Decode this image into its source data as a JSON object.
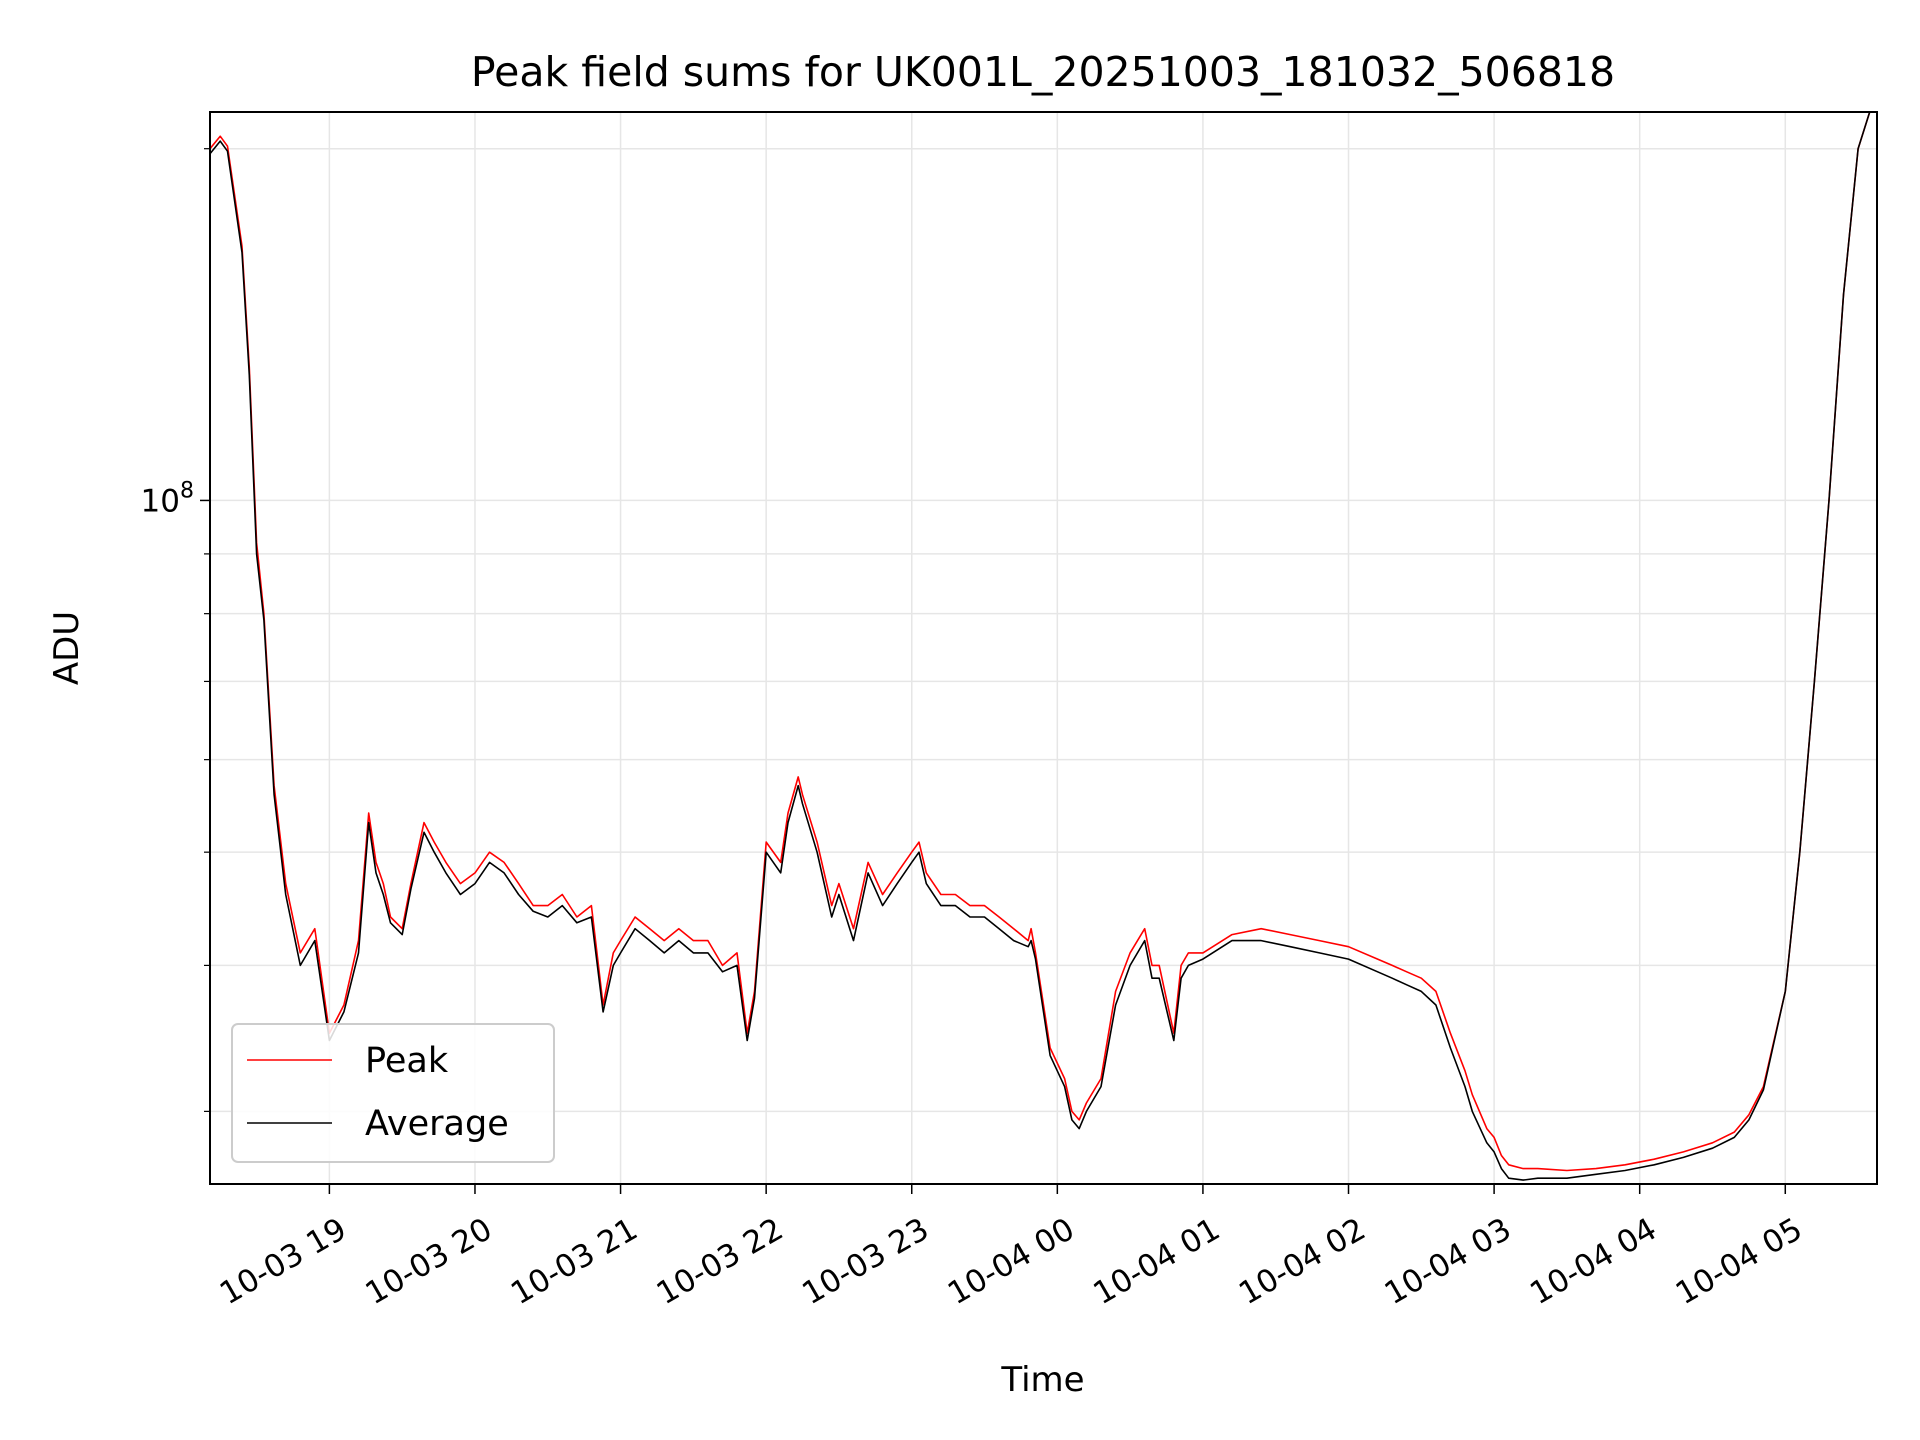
{
  "chart_data": {
    "type": "line",
    "title": "Peak field sums for UK001L_20251003_181032_506818",
    "xlabel": "Time",
    "ylabel": "ADU",
    "yscale": "log",
    "grid": true,
    "legend_position": "lower-left",
    "x_unit": "hours since 10-03 18:00",
    "xlim": [
      0.18,
      11.63
    ],
    "ylim": [
      26000000,
      215000000
    ],
    "x_ticks": [
      1,
      2,
      3,
      4,
      5,
      6,
      7,
      8,
      9,
      10,
      11
    ],
    "x_tick_labels": [
      "10-03 19",
      "10-03 20",
      "10-03 21",
      "10-03 22",
      "10-03 23",
      "10-04 00",
      "10-04 01",
      "10-04 02",
      "10-04 03",
      "10-04 04",
      "10-04 05"
    ],
    "y_major_ticks": [
      100000000
    ],
    "y_major_tick_labels": [
      "10"
    ],
    "y_major_tick_superscripts": [
      "8"
    ],
    "y_minor_ticks": [
      30000000,
      40000000,
      50000000,
      60000000,
      70000000,
      80000000,
      90000000,
      200000000
    ],
    "series": [
      {
        "name": "Peak",
        "color": "#ff0000",
        "x": [
          0.18,
          0.25,
          0.3,
          0.4,
          0.45,
          0.5,
          0.55,
          0.62,
          0.7,
          0.8,
          0.9,
          1.0,
          1.1,
          1.2,
          1.27,
          1.32,
          1.37,
          1.42,
          1.5,
          1.56,
          1.65,
          1.72,
          1.8,
          1.9,
          2.0,
          2.1,
          2.2,
          2.3,
          2.4,
          2.5,
          2.6,
          2.7,
          2.8,
          2.88,
          2.95,
          3.0,
          3.1,
          3.2,
          3.3,
          3.4,
          3.5,
          3.6,
          3.7,
          3.8,
          3.87,
          3.92,
          4.0,
          4.1,
          4.15,
          4.22,
          4.25,
          4.35,
          4.45,
          4.5,
          4.6,
          4.7,
          4.8,
          4.9,
          5.0,
          5.05,
          5.1,
          5.2,
          5.3,
          5.4,
          5.5,
          5.6,
          5.7,
          5.8,
          5.82,
          5.85,
          5.95,
          6.05,
          6.1,
          6.15,
          6.2,
          6.3,
          6.4,
          6.5,
          6.6,
          6.65,
          6.7,
          6.8,
          6.85,
          6.9,
          7.0,
          7.2,
          7.4,
          7.6,
          7.8,
          8.0,
          8.2,
          8.3,
          8.4,
          8.5,
          8.6,
          8.7,
          8.8,
          8.85,
          8.95,
          9.0,
          9.05,
          9.1,
          9.2,
          9.3,
          9.5,
          9.7,
          9.9,
          10.1,
          10.3,
          10.5,
          10.65,
          10.75,
          10.85,
          11.0,
          11.1,
          11.2,
          11.3,
          11.4,
          11.5,
          11.58,
          11.63
        ],
        "y": [
          200000000,
          205000000,
          201000000,
          165000000,
          130000000,
          92000000,
          80000000,
          57000000,
          47000000,
          41000000,
          43000000,
          35000000,
          37000000,
          42000000,
          54000000,
          49000000,
          47000000,
          44000000,
          43000000,
          47000000,
          53000000,
          51000000,
          49000000,
          47000000,
          48000000,
          50000000,
          49000000,
          47000000,
          45000000,
          45000000,
          46000000,
          44000000,
          45000000,
          37000000,
          41000000,
          42000000,
          44000000,
          43000000,
          42000000,
          43000000,
          42000000,
          42000000,
          40000000,
          41000000,
          35000000,
          38000000,
          51000000,
          49000000,
          54000000,
          58000000,
          56000000,
          51000000,
          45000000,
          47000000,
          43000000,
          49000000,
          46000000,
          48000000,
          50000000,
          51000000,
          48000000,
          46000000,
          46000000,
          45000000,
          45000000,
          44000000,
          43000000,
          42000000,
          43000000,
          41000000,
          34000000,
          32000000,
          30000000,
          29500000,
          30500000,
          32000000,
          38000000,
          41000000,
          43000000,
          40000000,
          40000000,
          35000000,
          40000000,
          41000000,
          41000000,
          42500000,
          43000000,
          42500000,
          42000000,
          41500000,
          40500000,
          40000000,
          39500000,
          39000000,
          38000000,
          35000000,
          32500000,
          31000000,
          29000000,
          28500000,
          27500000,
          27000000,
          26800000,
          26800000,
          26700000,
          26800000,
          27000000,
          27300000,
          27700000,
          28200000,
          28800000,
          29800000,
          31500000,
          38000000,
          50000000,
          70000000,
          100000000,
          150000000,
          200000000,
          215000000,
          215000000
        ]
      },
      {
        "name": "Average",
        "color": "#000000",
        "x": [
          0.18,
          0.25,
          0.3,
          0.4,
          0.45,
          0.5,
          0.55,
          0.62,
          0.7,
          0.8,
          0.9,
          1.0,
          1.1,
          1.2,
          1.27,
          1.32,
          1.37,
          1.42,
          1.5,
          1.56,
          1.65,
          1.72,
          1.8,
          1.9,
          2.0,
          2.1,
          2.2,
          2.3,
          2.4,
          2.5,
          2.6,
          2.7,
          2.8,
          2.88,
          2.95,
          3.0,
          3.1,
          3.2,
          3.3,
          3.4,
          3.5,
          3.6,
          3.7,
          3.8,
          3.87,
          3.92,
          4.0,
          4.1,
          4.15,
          4.22,
          4.25,
          4.35,
          4.45,
          4.5,
          4.6,
          4.7,
          4.8,
          4.9,
          5.0,
          5.05,
          5.1,
          5.2,
          5.3,
          5.4,
          5.5,
          5.6,
          5.7,
          5.8,
          5.82,
          5.85,
          5.95,
          6.05,
          6.1,
          6.15,
          6.2,
          6.3,
          6.4,
          6.5,
          6.6,
          6.65,
          6.7,
          6.8,
          6.85,
          6.9,
          7.0,
          7.2,
          7.4,
          7.6,
          7.8,
          8.0,
          8.2,
          8.3,
          8.4,
          8.5,
          8.6,
          8.7,
          8.8,
          8.85,
          8.95,
          9.0,
          9.05,
          9.1,
          9.2,
          9.3,
          9.5,
          9.7,
          9.9,
          10.1,
          10.3,
          10.5,
          10.65,
          10.75,
          10.85,
          11.0,
          11.1,
          11.2,
          11.3,
          11.4,
          11.5,
          11.58,
          11.63
        ],
        "y": [
          198000000,
          203000000,
          199000000,
          163000000,
          128000000,
          90000000,
          79000000,
          56000000,
          46000000,
          40000000,
          42000000,
          34500000,
          36500000,
          41000000,
          53000000,
          48000000,
          46000000,
          43500000,
          42500000,
          46500000,
          52000000,
          50000000,
          48000000,
          46000000,
          47000000,
          49000000,
          48000000,
          46000000,
          44500000,
          44000000,
          45000000,
          43500000,
          44000000,
          36500000,
          40000000,
          41000000,
          43000000,
          42000000,
          41000000,
          42000000,
          41000000,
          41000000,
          39500000,
          40000000,
          34500000,
          37500000,
          50000000,
          48000000,
          53000000,
          57000000,
          55000000,
          50000000,
          44000000,
          46000000,
          42000000,
          48000000,
          45000000,
          47000000,
          49000000,
          50000000,
          47000000,
          45000000,
          45000000,
          44000000,
          44000000,
          43000000,
          42000000,
          41500000,
          42000000,
          40500000,
          33500000,
          31500000,
          29500000,
          29000000,
          30000000,
          31500000,
          37000000,
          40000000,
          42000000,
          39000000,
          39000000,
          34500000,
          39000000,
          40000000,
          40500000,
          42000000,
          42000000,
          41500000,
          41000000,
          40500000,
          39500000,
          39000000,
          38500000,
          38000000,
          37000000,
          34000000,
          31500000,
          30000000,
          28200000,
          27700000,
          26800000,
          26300000,
          26200000,
          26300000,
          26300000,
          26500000,
          26700000,
          27000000,
          27400000,
          27900000,
          28500000,
          29500000,
          31300000,
          38000000,
          50000000,
          70000000,
          100000000,
          150000000,
          200000000,
          215000000,
          215000000
        ]
      }
    ]
  }
}
